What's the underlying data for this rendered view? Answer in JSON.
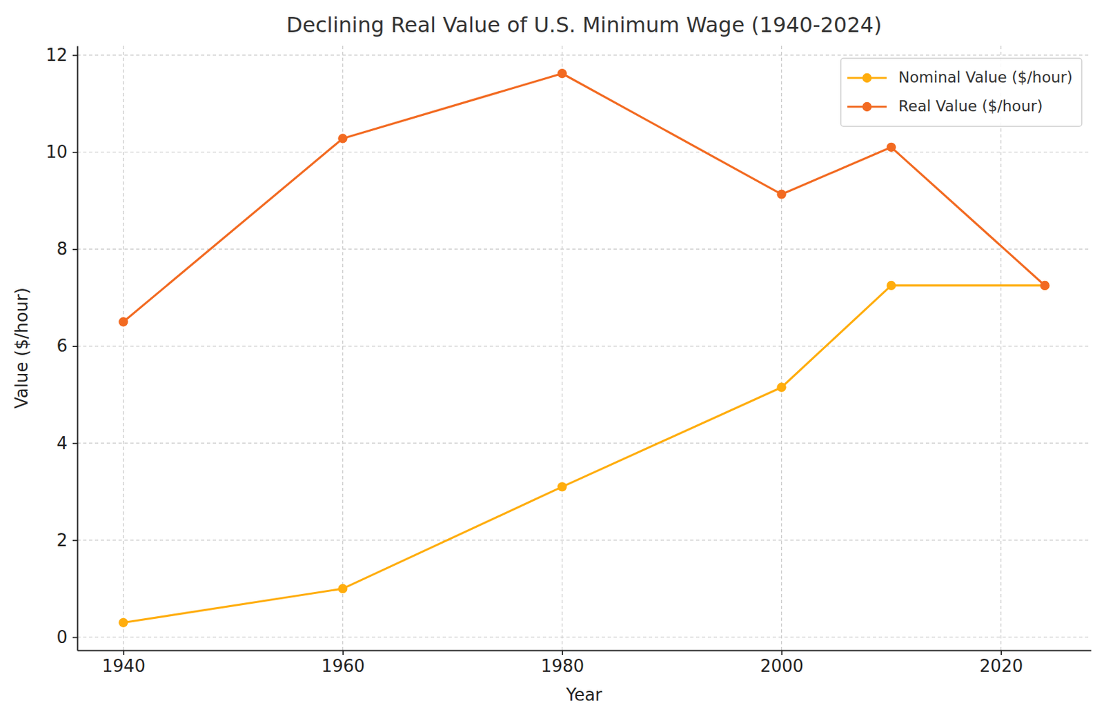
{
  "chart_data": {
    "type": "line",
    "title": "Declining Real Value of U.S. Minimum Wage (1940-2024)",
    "x_label": "Year",
    "y_label": "Value ($/hour)",
    "x": [
      1940,
      1960,
      1980,
      2000,
      2010,
      2024
    ],
    "series": [
      {
        "name": "Nominal Value ($/hour)",
        "color": "#ffad0d",
        "marker": "circle",
        "values": [
          0.3,
          1.0,
          3.1,
          5.15,
          7.25,
          7.25
        ]
      },
      {
        "name": "Real Value ($/hour)",
        "color": "#f26a21",
        "marker": "circle",
        "values": [
          6.5,
          10.28,
          11.62,
          9.13,
          10.1,
          7.25
        ]
      }
    ],
    "xlim": [
      1935.8,
      2028.2
    ],
    "ylim": [
      -0.27,
      12.19
    ],
    "xticks": [
      1940,
      1960,
      1980,
      2000,
      2020
    ],
    "yticks": [
      0,
      2,
      4,
      6,
      8,
      10,
      12
    ],
    "grid": true,
    "legend": "upper right"
  }
}
